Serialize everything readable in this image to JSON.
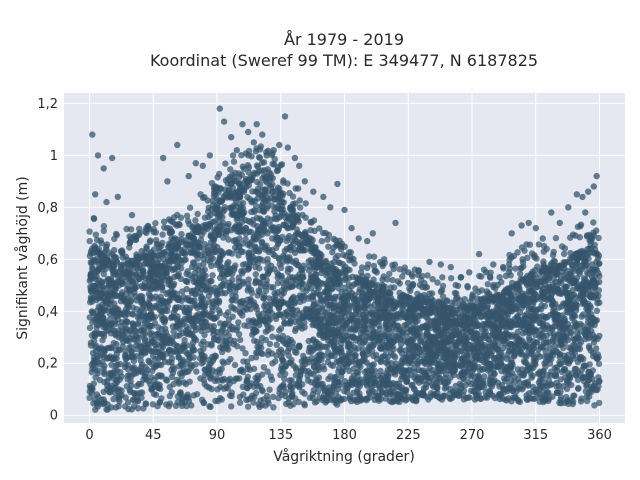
{
  "chart_data": {
    "type": "scatter",
    "title": "År 1979 - 2019",
    "subtitle": "Koordinat (Sweref 99 TM): E 349477, N 6187825",
    "xlabel": "Vågriktning (grader)",
    "ylabel": "Signifikant våghöjd (m)",
    "xlim": [
      -18,
      378
    ],
    "ylim": [
      -0.03,
      1.24
    ],
    "xticks": [
      0,
      45,
      90,
      135,
      180,
      225,
      270,
      315,
      360
    ],
    "xtick_labels": [
      "0",
      "45",
      "90",
      "135",
      "180",
      "225",
      "270",
      "315",
      "360"
    ],
    "yticks": [
      0,
      0.2,
      0.4,
      0.6,
      0.8,
      1.0,
      1.2
    ],
    "ytick_labels": [
      "0",
      "0,2",
      "0,4",
      "0,6",
      "0,8",
      "1",
      "1,2"
    ],
    "grid": true,
    "background": "#e5e8f1",
    "marker_color": "#34546c",
    "envelope": {
      "x": [
        0,
        15,
        30,
        45,
        60,
        75,
        90,
        100,
        110,
        120,
        130,
        140,
        150,
        160,
        170,
        180,
        195,
        210,
        225,
        240,
        255,
        270,
        285,
        300,
        315,
        330,
        345,
        360
      ],
      "upper": [
        0.66,
        0.58,
        0.6,
        0.61,
        0.64,
        0.7,
        0.8,
        0.87,
        0.9,
        0.91,
        0.88,
        0.82,
        0.72,
        0.62,
        0.56,
        0.54,
        0.5,
        0.47,
        0.45,
        0.43,
        0.41,
        0.42,
        0.45,
        0.5,
        0.55,
        0.56,
        0.62,
        0.62
      ],
      "lower": [
        0.02,
        0.02,
        0.02,
        0.03,
        0.03,
        0.03,
        0.03,
        0.03,
        0.03,
        0.03,
        0.03,
        0.03,
        0.03,
        0.04,
        0.04,
        0.04,
        0.05,
        0.05,
        0.05,
        0.06,
        0.06,
        0.06,
        0.06,
        0.05,
        0.05,
        0.04,
        0.04,
        0.03
      ]
    },
    "outliers": [
      [
        2,
        1.08
      ],
      [
        6,
        1.0
      ],
      [
        16,
        0.99
      ],
      [
        10,
        0.95
      ],
      [
        4,
        0.85
      ],
      [
        20,
        0.84
      ],
      [
        12,
        0.82
      ],
      [
        30,
        0.77
      ],
      [
        40,
        0.72
      ],
      [
        52,
        0.99
      ],
      [
        55,
        0.9
      ],
      [
        62,
        1.04
      ],
      [
        70,
        0.92
      ],
      [
        75,
        0.97
      ],
      [
        80,
        0.96
      ],
      [
        85,
        1.0
      ],
      [
        88,
        0.87
      ],
      [
        92,
        1.18
      ],
      [
        95,
        1.13
      ],
      [
        100,
        1.07
      ],
      [
        104,
        1.02
      ],
      [
        108,
        1.12
      ],
      [
        112,
        1.09
      ],
      [
        116,
        1.05
      ],
      [
        118,
        1.12
      ],
      [
        122,
        1.08
      ],
      [
        125,
        1.0
      ],
      [
        130,
        1.02
      ],
      [
        134,
        1.04
      ],
      [
        138,
        1.15
      ],
      [
        140,
        1.03
      ],
      [
        145,
        0.99
      ],
      [
        148,
        0.96
      ],
      [
        152,
        0.9
      ],
      [
        158,
        0.86
      ],
      [
        165,
        0.84
      ],
      [
        170,
        0.8
      ],
      [
        175,
        0.89
      ],
      [
        180,
        0.79
      ],
      [
        185,
        0.72
      ],
      [
        190,
        0.68
      ],
      [
        196,
        0.67
      ],
      [
        200,
        0.7
      ],
      [
        208,
        0.6
      ],
      [
        216,
        0.74
      ],
      [
        225,
        0.55
      ],
      [
        232,
        0.54
      ],
      [
        240,
        0.59
      ],
      [
        248,
        0.58
      ],
      [
        255,
        0.57
      ],
      [
        262,
        0.53
      ],
      [
        268,
        0.55
      ],
      [
        275,
        0.62
      ],
      [
        280,
        0.55
      ],
      [
        285,
        0.58
      ],
      [
        292,
        0.57
      ],
      [
        298,
        0.7
      ],
      [
        305,
        0.73
      ],
      [
        310,
        0.74
      ],
      [
        315,
        0.72
      ],
      [
        320,
        0.68
      ],
      [
        326,
        0.78
      ],
      [
        332,
        0.74
      ],
      [
        338,
        0.8
      ],
      [
        344,
        0.85
      ],
      [
        348,
        0.84
      ],
      [
        352,
        0.86
      ],
      [
        356,
        0.88
      ],
      [
        358,
        0.92
      ],
      [
        350,
        0.78
      ]
    ]
  }
}
